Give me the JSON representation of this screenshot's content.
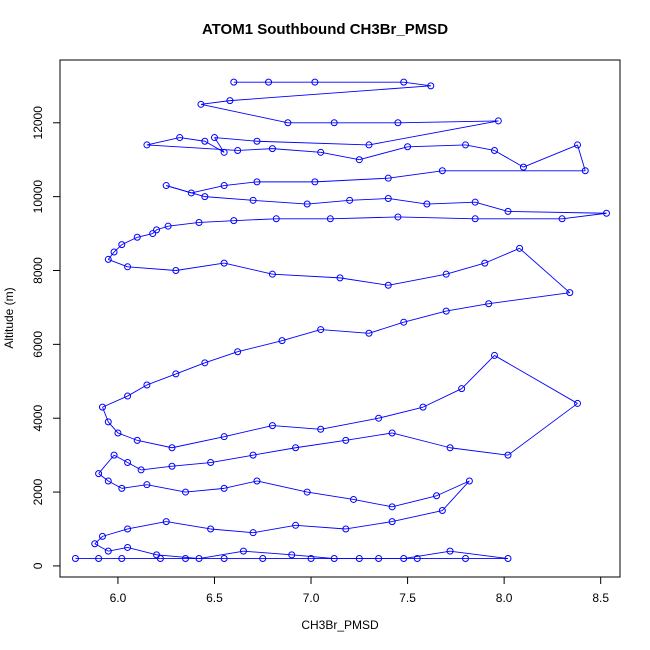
{
  "chart_data": {
    "type": "scatter",
    "title": "ATOM1 Southbound CH3Br_PMSD",
    "xlabel": "CH3Br_PMSD",
    "ylabel": "Altitude (m)",
    "xlim": [
      5.7,
      8.6
    ],
    "ylim": [
      -300,
      13700
    ],
    "xticks": [
      6.0,
      6.5,
      7.0,
      7.5,
      8.0,
      8.5
    ],
    "xtick_labels": [
      "6.0",
      "6.5",
      "7.0",
      "7.5",
      "8.0",
      "8.5"
    ],
    "yticks": [
      0,
      2000,
      4000,
      6000,
      8000,
      10000,
      12000
    ],
    "ytick_labels": [
      "0",
      "2000",
      "4000",
      "6000",
      "8000",
      "10000",
      "12000"
    ],
    "grid": false,
    "marker": "open-circle",
    "color": "#0000ff",
    "series": [
      {
        "x": [
          6.6,
          6.78,
          7.02,
          7.48,
          7.62,
          6.58,
          6.43,
          6.88,
          7.12,
          7.45,
          7.97,
          7.3,
          6.72,
          6.5,
          6.55,
          6.45,
          6.32,
          6.15,
          6.62,
          6.8,
          7.05,
          7.25,
          7.5,
          7.8,
          7.95,
          8.1,
          8.38,
          8.42,
          7.68,
          7.4,
          7.02,
          6.72,
          6.55,
          6.38,
          6.25,
          6.45,
          6.7,
          6.98,
          7.2,
          7.4,
          7.6,
          7.85,
          8.02,
          8.53,
          8.3,
          7.85,
          7.45,
          7.1,
          6.82,
          6.6,
          6.42,
          6.26,
          6.2,
          6.18,
          6.1,
          6.02,
          5.98,
          5.95,
          6.05,
          6.3,
          6.55,
          6.8,
          7.15,
          7.4,
          7.7,
          7.9,
          8.08,
          8.34,
          7.92,
          7.7,
          7.48,
          7.3,
          7.05,
          6.85,
          6.62,
          6.45,
          6.3,
          6.15,
          6.05,
          5.92,
          5.95,
          6.0,
          6.1,
          6.28,
          6.55,
          6.8,
          7.05,
          7.35,
          7.58,
          7.78,
          7.95,
          8.38,
          8.02,
          7.72,
          7.42,
          7.18,
          6.92,
          6.7,
          6.48,
          6.28,
          6.12,
          6.05,
          5.98,
          5.9,
          5.95,
          6.02,
          6.15,
          6.35,
          6.55,
          6.72,
          6.98,
          7.22,
          7.42,
          7.65,
          7.82,
          7.68,
          7.42,
          7.18,
          6.92,
          6.7,
          6.48,
          6.25,
          6.05,
          5.92,
          5.88,
          5.95,
          6.05,
          6.2,
          6.42,
          6.65,
          6.9,
          7.12,
          7.35,
          7.55,
          7.8,
          8.02,
          7.72,
          7.48,
          7.25,
          7.0,
          6.75,
          6.55,
          6.35,
          6.22,
          6.02,
          5.9,
          5.78
        ],
        "y": [
          13100,
          13100,
          13100,
          13100,
          13000,
          12600,
          12500,
          12000,
          12000,
          12000,
          12050,
          11400,
          11500,
          11600,
          11200,
          11500,
          11600,
          11400,
          11250,
          11300,
          11200,
          11000,
          11350,
          11400,
          11250,
          10800,
          11400,
          10700,
          10700,
          10500,
          10400,
          10400,
          10300,
          10100,
          10300,
          10000,
          9900,
          9800,
          9900,
          9950,
          9800,
          9850,
          9600,
          9550,
          9400,
          9400,
          9450,
          9400,
          9400,
          9350,
          9300,
          9200,
          9100,
          9000,
          8900,
          8700,
          8500,
          8300,
          8100,
          8000,
          8200,
          7900,
          7800,
          7600,
          7900,
          8200,
          8600,
          7400,
          7100,
          6900,
          6600,
          6300,
          6400,
          6100,
          5800,
          5500,
          5200,
          4900,
          4600,
          4300,
          3900,
          3600,
          3400,
          3200,
          3500,
          3800,
          3700,
          4000,
          4300,
          4800,
          5700,
          4400,
          3000,
          3200,
          3600,
          3400,
          3200,
          3000,
          2800,
          2700,
          2600,
          2800,
          3000,
          2500,
          2300,
          2100,
          2200,
          2000,
          2100,
          2300,
          2000,
          1800,
          1600,
          1900,
          2300,
          1500,
          1200,
          1000,
          1100,
          900,
          1000,
          1200,
          1000,
          800,
          600,
          400,
          500,
          300,
          200,
          400,
          300,
          200,
          200,
          200,
          200,
          200,
          400,
          200,
          200,
          200,
          200,
          200,
          200,
          200,
          200,
          200,
          200
        ]
      }
    ]
  }
}
